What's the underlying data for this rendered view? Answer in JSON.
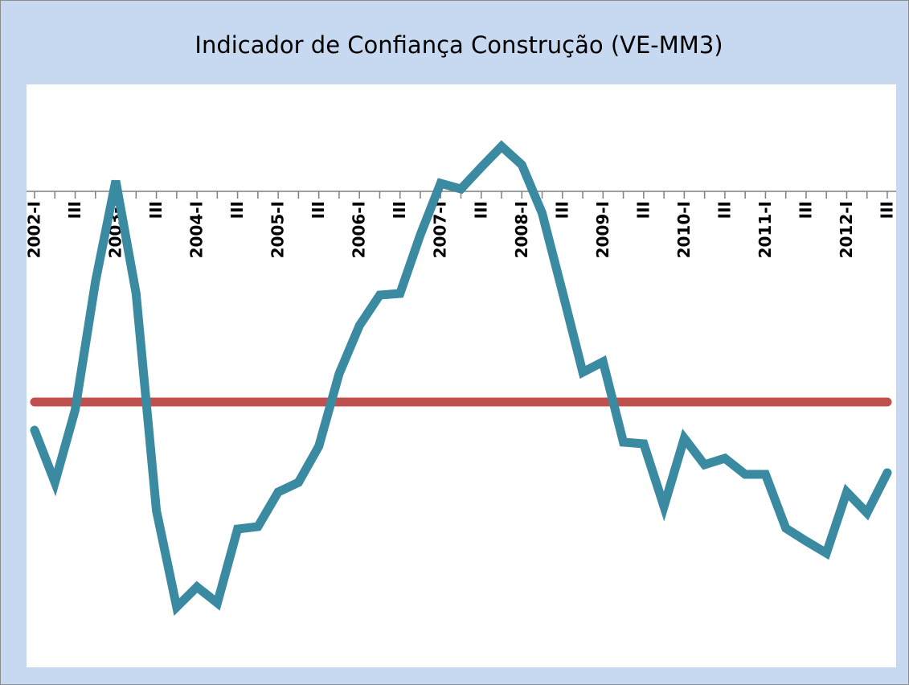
{
  "chart_data": {
    "type": "line",
    "title": "Indicador de Confiança Construção (VE-MM3)",
    "categories": [
      "2002-I",
      null,
      "III",
      null,
      "2003-I",
      null,
      "III",
      null,
      "2004-I",
      null,
      "III",
      null,
      "2005-I",
      null,
      "III",
      null,
      "2006-I",
      null,
      "III",
      null,
      "2007-I",
      null,
      "III",
      null,
      "2008-I",
      null,
      "III",
      null,
      "2009-I",
      null,
      "III",
      null,
      "2010-I",
      null,
      "III",
      null,
      "2011-I",
      null,
      "III",
      null,
      "2012-I",
      null,
      "III"
    ],
    "series": [
      {
        "color": "#3a8ba1",
        "values": [
          -29.7,
          -36.2,
          -27.2,
          -11.2,
          1.3,
          -12.7,
          -39.7,
          -51.7,
          -49.2,
          -51.2,
          -42,
          -41.7,
          -37.4,
          -36.2,
          -31.7,
          -22.7,
          -16.7,
          -12.9,
          -12.7,
          -5.4,
          1,
          0.3,
          3,
          5.6,
          3.3,
          -2.7,
          -12.5,
          -22.5,
          -21.2,
          -31.2,
          -31.4,
          -39.2,
          -30.7,
          -34,
          -33.2,
          -35.2,
          -35.2,
          -41.9,
          -43.5,
          -45,
          -37.4,
          -40,
          -35
        ]
      },
      {
        "color": "#c0504d",
        "values": [
          -26.2,
          -26.2,
          -26.2,
          -26.2,
          -26.2,
          -26.2,
          -26.2,
          -26.2,
          -26.2,
          -26.2,
          -26.2,
          -26.2,
          -26.2,
          -26.2,
          -26.2,
          -26.2,
          -26.2,
          -26.2,
          -26.2,
          -26.2,
          -26.2,
          -26.2,
          -26.2,
          -26.2,
          -26.2,
          -26.2,
          -26.2,
          -26.2,
          -26.2,
          -26.2,
          -26.2,
          -26.2,
          -26.2,
          -26.2,
          -26.2,
          -26.2,
          -26.2,
          -26.2,
          -26.2,
          -26.2,
          -26.2,
          -26.2,
          -26.2
        ]
      }
    ],
    "ylim": [
      -59.2,
      13.3
    ]
  }
}
